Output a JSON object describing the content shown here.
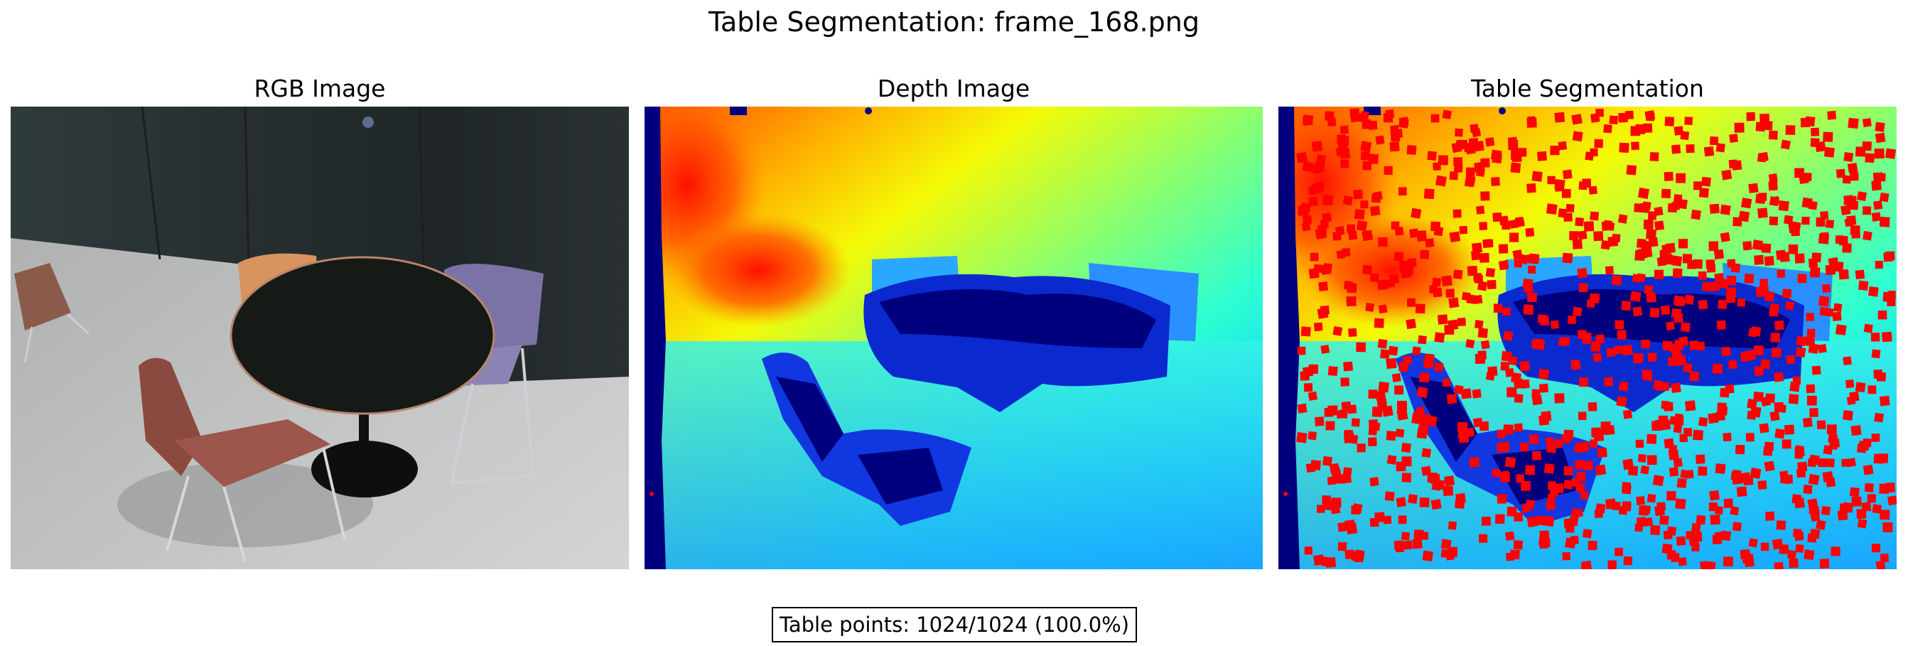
{
  "figure": {
    "title": "Table Segmentation: frame_168.png"
  },
  "panels": [
    {
      "title": "RGB Image"
    },
    {
      "title": "Depth Image"
    },
    {
      "title": "Table Segmentation"
    }
  ],
  "stats": {
    "text": "Table points: 1024/1024 (100.0%)",
    "table_points": 1024,
    "total_points": 1024,
    "percent": 100.0
  },
  "colors": {
    "overlay_points": "#ff0000",
    "depth_invalid": "#00007f",
    "table_rgb": "#161a17"
  }
}
